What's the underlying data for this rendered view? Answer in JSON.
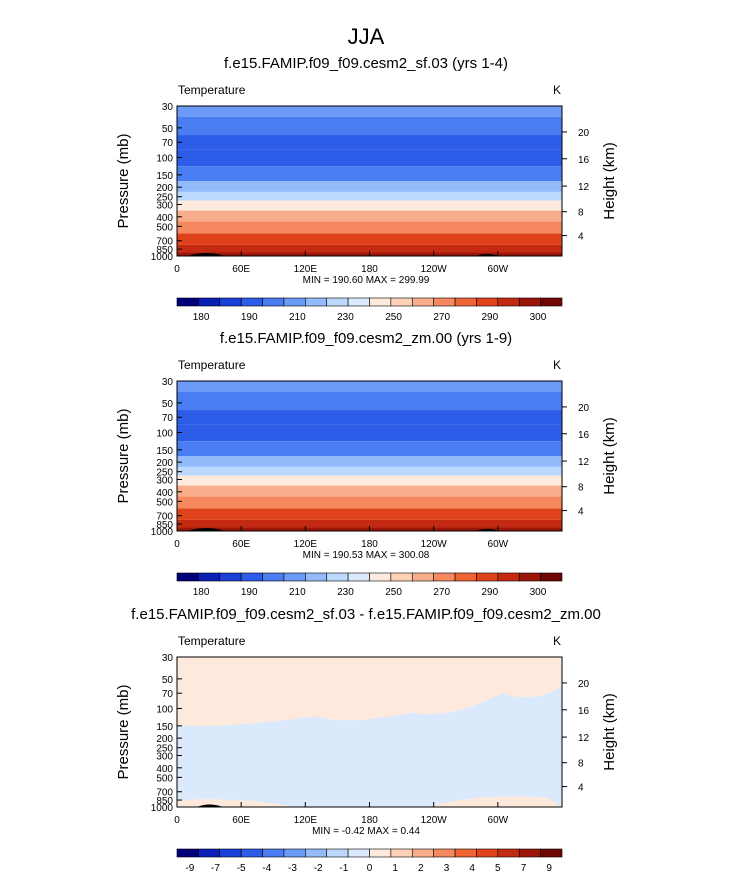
{
  "figure": {
    "title": "JJA"
  },
  "chart_data": [
    {
      "type": "heatmap",
      "title": "f.e15.FAMIP.f09_f09.cesm2_sf.03 (yrs 1-4)",
      "left_label": "Temperature",
      "right_label": "K",
      "ylabel": "Pressure (mb)",
      "ylabel_right": "Height (km)",
      "x_ticks": [
        "0",
        "60E",
        "120E",
        "180",
        "120W",
        "60W"
      ],
      "y_ticks": [
        "30",
        "50",
        "70",
        "100",
        "150",
        "200",
        "250",
        "300",
        "400",
        "500",
        "700",
        "850",
        "1000"
      ],
      "y_ticks_right": [
        "20",
        "16",
        "12",
        "8",
        "4"
      ],
      "y_scale": "log",
      "ylim": [
        1000,
        30
      ],
      "stats": "MIN = 190.60  MAX = 299.99",
      "colorbar_labels": [
        "180",
        "190",
        "210",
        "230",
        "250",
        "270",
        "290",
        "300"
      ],
      "colorbar_colors": [
        "#00007b",
        "#0a1fb5",
        "#1a40d8",
        "#2d5ce8",
        "#4a7cf2",
        "#6c9af7",
        "#93bbfa",
        "#bcd8fc",
        "#dbe9fd",
        "#fdeadd",
        "#fcd1b6",
        "#f9ae8b",
        "#f5885e",
        "#ef6433",
        "#e0431c",
        "#c42a12",
        "#9b1508",
        "#6e0604"
      ],
      "levels": [
        {
          "pressure": 1000,
          "value": 294
        },
        {
          "pressure": 850,
          "value": 287
        },
        {
          "pressure": 700,
          "value": 280
        },
        {
          "pressure": 500,
          "value": 265
        },
        {
          "pressure": 400,
          "value": 255
        },
        {
          "pressure": 300,
          "value": 240
        },
        {
          "pressure": 250,
          "value": 230
        },
        {
          "pressure": 200,
          "value": 220
        },
        {
          "pressure": 150,
          "value": 210
        },
        {
          "pressure": 100,
          "value": 198
        },
        {
          "pressure": 70,
          "value": 200
        },
        {
          "pressure": 50,
          "value": 207
        },
        {
          "pressure": 30,
          "value": 215
        }
      ]
    },
    {
      "type": "heatmap",
      "title": "f.e15.FAMIP.f09_f09.cesm2_zm.00 (yrs 1-9)",
      "left_label": "Temperature",
      "right_label": "K",
      "ylabel": "Pressure (mb)",
      "ylabel_right": "Height (km)",
      "x_ticks": [
        "0",
        "60E",
        "120E",
        "180",
        "120W",
        "60W"
      ],
      "y_ticks": [
        "30",
        "50",
        "70",
        "100",
        "150",
        "200",
        "250",
        "300",
        "400",
        "500",
        "700",
        "850",
        "1000"
      ],
      "y_ticks_right": [
        "20",
        "16",
        "12",
        "8",
        "4"
      ],
      "y_scale": "log",
      "ylim": [
        1000,
        30
      ],
      "stats": "MIN = 190.53  MAX = 300.08",
      "colorbar_labels": [
        "180",
        "190",
        "210",
        "230",
        "250",
        "270",
        "290",
        "300"
      ],
      "colorbar_colors": [
        "#00007b",
        "#0a1fb5",
        "#1a40d8",
        "#2d5ce8",
        "#4a7cf2",
        "#6c9af7",
        "#93bbfa",
        "#bcd8fc",
        "#dbe9fd",
        "#fdeadd",
        "#fcd1b6",
        "#f9ae8b",
        "#f5885e",
        "#ef6433",
        "#e0431c",
        "#c42a12",
        "#9b1508",
        "#6e0604"
      ],
      "levels": [
        {
          "pressure": 1000,
          "value": 294
        },
        {
          "pressure": 850,
          "value": 287
        },
        {
          "pressure": 700,
          "value": 280
        },
        {
          "pressure": 500,
          "value": 265
        },
        {
          "pressure": 400,
          "value": 255
        },
        {
          "pressure": 300,
          "value": 240
        },
        {
          "pressure": 250,
          "value": 230
        },
        {
          "pressure": 200,
          "value": 220
        },
        {
          "pressure": 150,
          "value": 210
        },
        {
          "pressure": 100,
          "value": 198
        },
        {
          "pressure": 70,
          "value": 200
        },
        {
          "pressure": 50,
          "value": 207
        },
        {
          "pressure": 30,
          "value": 215
        }
      ]
    },
    {
      "type": "heatmap",
      "title": "f.e15.FAMIP.f09_f09.cesm2_sf.03 - f.e15.FAMIP.f09_f09.cesm2_zm.00",
      "left_label": "Temperature",
      "right_label": "K",
      "ylabel": "Pressure (mb)",
      "ylabel_right": "Height (km)",
      "x_ticks": [
        "0",
        "60E",
        "120E",
        "180",
        "120W",
        "60W"
      ],
      "y_ticks": [
        "30",
        "50",
        "70",
        "100",
        "150",
        "200",
        "250",
        "300",
        "400",
        "500",
        "700",
        "850",
        "1000"
      ],
      "y_ticks_right": [
        "20",
        "16",
        "12",
        "8",
        "4"
      ],
      "y_scale": "log",
      "ylim": [
        1000,
        30
      ],
      "stats": "MIN = -0.42  MAX =  0.44",
      "colorbar_labels": [
        "-9",
        "-7",
        "-5",
        "-4",
        "-3",
        "-2",
        "-1",
        "0",
        "1",
        "2",
        "3",
        "4",
        "5",
        "7",
        "9"
      ],
      "colorbar_colors": [
        "#00007b",
        "#0a1fb5",
        "#1a40d8",
        "#2d5ce8",
        "#4a7cf2",
        "#6c9af7",
        "#93bbfa",
        "#bcd8fc",
        "#dbe9fd",
        "#fdeadd",
        "#fcd1b6",
        "#f9ae8b",
        "#f5885e",
        "#ef6433",
        "#e0431c",
        "#c42a12",
        "#9b1508",
        "#6e0604"
      ],
      "diff_colors": {
        "positive": "#fdeadd",
        "negative": "#dbe9fd"
      }
    }
  ]
}
